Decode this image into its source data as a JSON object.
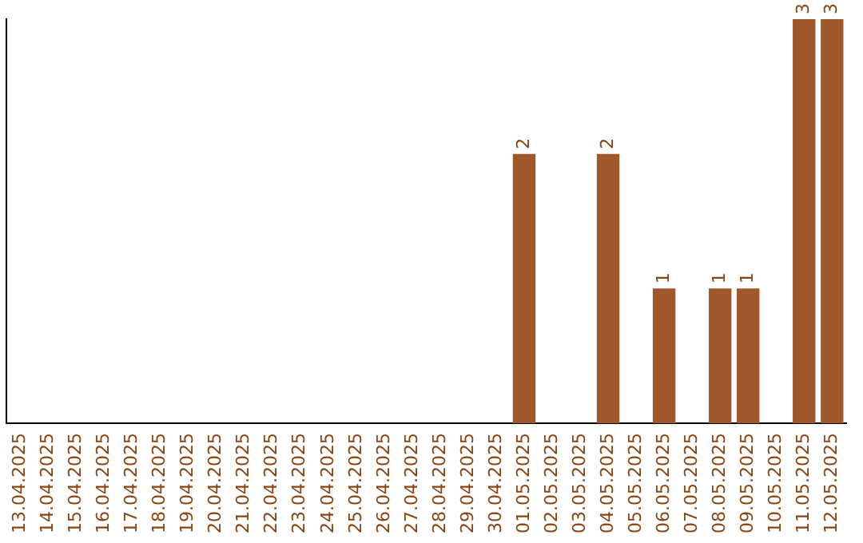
{
  "chart_data": {
    "type": "bar",
    "categories": [
      "13.04.2025",
      "14.04.2025",
      "15.04.2025",
      "16.04.2025",
      "17.04.2025",
      "18.04.2025",
      "19.04.2025",
      "20.04.2025",
      "21.04.2025",
      "22.04.2025",
      "23.04.2025",
      "24.04.2025",
      "25.04.2025",
      "26.04.2025",
      "27.04.2025",
      "28.04.2025",
      "29.04.2025",
      "30.04.2025",
      "01.05.2025",
      "02.05.2025",
      "03.05.2025",
      "04.05.2025",
      "05.05.2025",
      "06.05.2025",
      "07.05.2025",
      "08.05.2025",
      "09.05.2025",
      "10.05.2025",
      "11.05.2025",
      "12.05.2025"
    ],
    "values": [
      null,
      null,
      null,
      null,
      null,
      null,
      null,
      null,
      null,
      null,
      null,
      null,
      null,
      null,
      null,
      null,
      null,
      null,
      2,
      null,
      null,
      2,
      null,
      1,
      null,
      1,
      1,
      null,
      3,
      3
    ],
    "data_labels": true,
    "color": "#a0582a",
    "grid": false,
    "legend": false,
    "tick_labels": "x"
  }
}
